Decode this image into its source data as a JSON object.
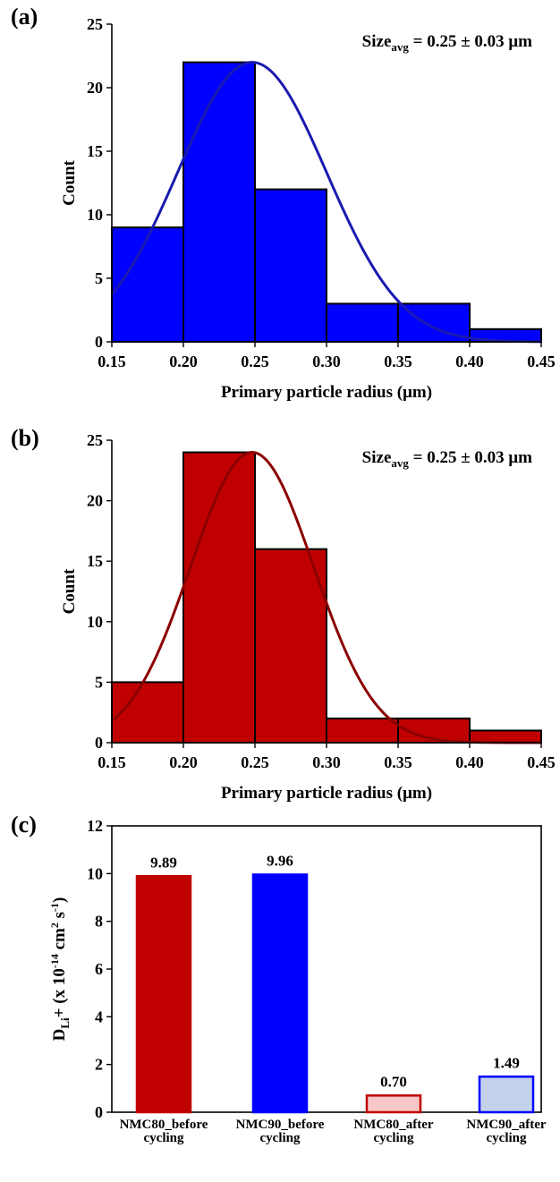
{
  "chart_data": [
    {
      "panel": "(a)",
      "type": "bar",
      "subtype": "histogram",
      "bins": [
        {
          "x0": 0.15,
          "x1": 0.2,
          "count": 9
        },
        {
          "x0": 0.2,
          "x1": 0.25,
          "count": 22
        },
        {
          "x0": 0.25,
          "x1": 0.3,
          "count": 12
        },
        {
          "x0": 0.3,
          "x1": 0.35,
          "count": 3
        },
        {
          "x0": 0.35,
          "x1": 0.4,
          "count": 3
        },
        {
          "x0": 0.4,
          "x1": 0.45,
          "count": 1
        }
      ],
      "fit_curve": {
        "type": "gaussian",
        "peak_x": 0.248,
        "peak_y": 22,
        "sigma": 0.052
      },
      "xlabel": "Primary particle radius (μm)",
      "ylabel": "Count",
      "xlim": [
        0.15,
        0.45
      ],
      "ylim": [
        0,
        25
      ],
      "xticks": [
        "0.15",
        "0.20",
        "0.25",
        "0.30",
        "0.35",
        "0.40",
        "0.45"
      ],
      "yticks": [
        "0",
        "5",
        "10",
        "15",
        "20",
        "25"
      ],
      "annotation": {
        "main": "Size",
        "sub": "avg",
        "rest": " = 0.25 ± 0.03 μm"
      },
      "colors": {
        "bar": "#0000FF",
        "curve": "#1A1AB0"
      },
      "grid": false
    },
    {
      "panel": "(b)",
      "type": "bar",
      "subtype": "histogram",
      "bins": [
        {
          "x0": 0.15,
          "x1": 0.2,
          "count": 5
        },
        {
          "x0": 0.2,
          "x1": 0.25,
          "count": 24
        },
        {
          "x0": 0.25,
          "x1": 0.3,
          "count": 16
        },
        {
          "x0": 0.3,
          "x1": 0.35,
          "count": 2
        },
        {
          "x0": 0.35,
          "x1": 0.4,
          "count": 2
        },
        {
          "x0": 0.4,
          "x1": 0.45,
          "count": 1
        }
      ],
      "fit_curve": {
        "type": "gaussian",
        "peak_x": 0.248,
        "peak_y": 24,
        "sigma": 0.043
      },
      "xlabel": "Primary particle radius (μm)",
      "ylabel": "Count",
      "xlim": [
        0.15,
        0.45
      ],
      "ylim": [
        0,
        25
      ],
      "xticks": [
        "0.15",
        "0.20",
        "0.25",
        "0.30",
        "0.35",
        "0.40",
        "0.45"
      ],
      "yticks": [
        "0",
        "5",
        "10",
        "15",
        "20",
        "25"
      ],
      "annotation": {
        "main": "Size",
        "sub": "avg",
        "rest": " = 0.25 ± 0.03 μm"
      },
      "colors": {
        "bar": "#C00000",
        "curve": "#8B0000"
      },
      "grid": false
    },
    {
      "panel": "(c)",
      "type": "bar",
      "categories": [
        [
          "NMC80_before",
          "cycling"
        ],
        [
          "NMC90_before",
          "cycling"
        ],
        [
          "NMC80_after",
          "cycling"
        ],
        [
          "NMC90_after",
          "cycling"
        ]
      ],
      "values": [
        9.89,
        9.96,
        0.7,
        1.49
      ],
      "value_labels": [
        "9.89",
        "9.96",
        "0.70",
        "1.49"
      ],
      "ylabel": {
        "base": "D",
        "sub": "Li",
        "plus": "+",
        "unit_a": " (x 10",
        "sup_a": "-14",
        "unit_b": " cm",
        "sup_b": "2",
        "unit_c": " s",
        "sup_c": "-1",
        "unit_d": ")"
      },
      "ylim": [
        0,
        12
      ],
      "yticks": [
        "0",
        "2",
        "4",
        "6",
        "8",
        "10",
        "12"
      ],
      "colors": {
        "fills": [
          "#C00000",
          "#0000FF",
          "#F8C8C8",
          "#C4D2EC"
        ],
        "strokes": [
          "#C00000",
          "#0000FF",
          "#C00000",
          "#0000FF"
        ]
      },
      "grid": false
    }
  ]
}
